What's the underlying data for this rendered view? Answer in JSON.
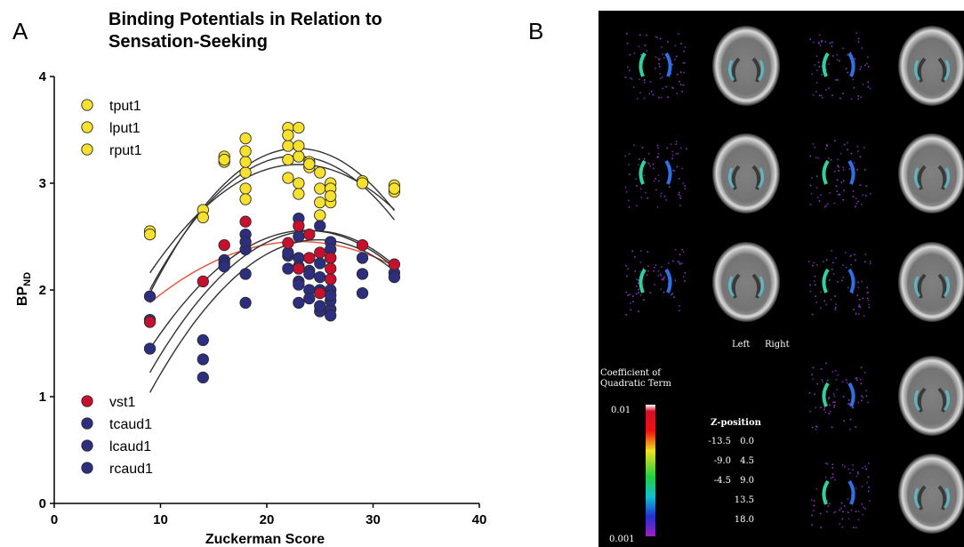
{
  "panels": {
    "a_label": "A",
    "b_label": "B"
  },
  "chart_data": {
    "type": "scatter",
    "title_line1": "Binding Potentials in Relation to",
    "title_line2": "Sensation-Seeking",
    "xlabel": "Zuckerman Score",
    "ylabel_main": "BP",
    "ylabel_sub": "ND",
    "xlim": [
      0,
      40
    ],
    "ylim": [
      0,
      4
    ],
    "xticks": [
      "0",
      "10",
      "20",
      "30",
      "40"
    ],
    "yticks": [
      "0",
      "1",
      "2",
      "3",
      "4"
    ],
    "colors": {
      "yellow": "#f6e12e",
      "red": "#c8102e",
      "navy": "#2e2e80",
      "curve_red": "#e0503c",
      "curve_gray": "#333333"
    },
    "series": [
      {
        "name": "tput1",
        "color": "yellow",
        "points": [
          [
            9,
            2.55
          ],
          [
            14,
            2.75
          ],
          [
            16,
            3.25
          ],
          [
            18,
            3.42
          ],
          [
            18,
            3.1
          ],
          [
            22,
            3.52
          ],
          [
            22,
            3.35
          ],
          [
            23,
            3.25
          ],
          [
            24,
            3.2
          ],
          [
            25,
            3.1
          ],
          [
            26,
            3.0
          ],
          [
            29,
            3.02
          ],
          [
            32,
            2.98
          ]
        ]
      },
      {
        "name": "lput1",
        "color": "yellow",
        "points": [
          [
            9,
            2.52
          ],
          [
            14,
            2.68
          ],
          [
            16,
            3.2
          ],
          [
            18,
            3.2
          ],
          [
            18,
            2.95
          ],
          [
            22,
            3.22
          ],
          [
            22,
            3.05
          ],
          [
            23,
            3.52
          ],
          [
            23,
            3.35
          ],
          [
            24,
            3.15
          ],
          [
            25,
            2.95
          ],
          [
            26,
            2.82
          ],
          [
            29,
            3.0
          ],
          [
            32,
            2.92
          ]
        ]
      },
      {
        "name": "rput1",
        "color": "yellow",
        "points": [
          [
            16,
            3.22
          ],
          [
            18,
            3.3
          ],
          [
            18,
            2.85
          ],
          [
            22,
            3.45
          ],
          [
            23,
            3.0
          ],
          [
            23,
            2.9
          ],
          [
            24,
            3.18
          ],
          [
            25,
            2.82
          ],
          [
            25,
            2.7
          ],
          [
            26,
            2.95
          ],
          [
            26,
            2.88
          ],
          [
            32,
            2.95
          ]
        ]
      },
      {
        "name": "vst1",
        "color": "red",
        "points": [
          [
            9,
            1.7
          ],
          [
            14,
            2.08
          ],
          [
            16,
            2.42
          ],
          [
            18,
            2.64
          ],
          [
            22,
            2.44
          ],
          [
            23,
            2.2
          ],
          [
            23,
            2.6
          ],
          [
            24,
            2.52
          ],
          [
            24,
            2.3
          ],
          [
            25,
            1.97
          ],
          [
            25,
            2.35
          ],
          [
            26,
            2.3
          ],
          [
            26,
            2.2
          ],
          [
            26,
            2.1
          ],
          [
            29,
            2.42
          ],
          [
            32,
            2.24
          ]
        ]
      },
      {
        "name": "tcaud1",
        "color": "navy",
        "points": [
          [
            9,
            1.94
          ],
          [
            9,
            1.45
          ],
          [
            14,
            1.53
          ],
          [
            14,
            1.35
          ],
          [
            14,
            1.18
          ],
          [
            16,
            2.28
          ],
          [
            18,
            2.52
          ],
          [
            18,
            2.38
          ],
          [
            18,
            2.15
          ],
          [
            22,
            2.32
          ],
          [
            23,
            2.67
          ],
          [
            23,
            2.3
          ],
          [
            23,
            2.08
          ],
          [
            24,
            2.18
          ],
          [
            24,
            2.0
          ],
          [
            25,
            2.6
          ],
          [
            25,
            2.25
          ],
          [
            26,
            2.45
          ],
          [
            26,
            2.3
          ],
          [
            26,
            1.82
          ],
          [
            29,
            2.3
          ],
          [
            32,
            2.16
          ]
        ]
      },
      {
        "name": "lcaud1",
        "color": "navy",
        "points": [
          [
            9,
            1.72
          ],
          [
            16,
            2.25
          ],
          [
            18,
            1.88
          ],
          [
            22,
            2.2
          ],
          [
            23,
            2.5
          ],
          [
            23,
            2.22
          ],
          [
            23,
            1.88
          ],
          [
            24,
            2.15
          ],
          [
            24,
            1.92
          ],
          [
            25,
            2.12
          ],
          [
            25,
            1.8
          ],
          [
            26,
            2.0
          ],
          [
            26,
            1.9
          ],
          [
            26,
            1.76
          ],
          [
            29,
            2.15
          ]
        ]
      },
      {
        "name": "rcaud1",
        "color": "navy",
        "points": [
          [
            16,
            2.22
          ],
          [
            18,
            2.45
          ],
          [
            22,
            2.35
          ],
          [
            23,
            2.05
          ],
          [
            24,
            2.3
          ],
          [
            25,
            1.85
          ],
          [
            25,
            2.0
          ],
          [
            26,
            2.38
          ],
          [
            26,
            2.1
          ],
          [
            26,
            1.95
          ],
          [
            29,
            1.97
          ],
          [
            32,
            2.12
          ]
        ]
      }
    ],
    "legend_top": [
      "tput1",
      "lput1",
      "rput1"
    ],
    "legend_bottom": [
      "vst1",
      "tcaud1",
      "lcaud1",
      "rcaud1"
    ],
    "fit_curves": [
      {
        "color": "curve_gray",
        "coef": [
          -0.355,
          0.3215,
          -0.00702
        ]
      },
      {
        "color": "curve_gray",
        "coef": [
          -0.2,
          0.3056,
          -0.00676
        ]
      },
      {
        "color": "curve_gray",
        "coef": [
          0.43,
          0.239,
          -0.0052
        ]
      },
      {
        "color": "curve_red",
        "coef": [
          0.91,
          0.1338,
          -0.0029
        ]
      },
      {
        "color": "curve_gray",
        "coef": [
          -0.32,
          0.2423,
          -0.0051
        ]
      },
      {
        "color": "curve_gray",
        "coef": [
          -0.78,
          0.2733,
          -0.0056
        ]
      },
      {
        "color": "curve_gray",
        "coef": [
          -1.05,
          0.2833,
          -0.0057
        ]
      }
    ]
  },
  "brain_panel": {
    "left_label": "Left",
    "right_label": "Right",
    "colorbar_title_line1": "Coefficient of",
    "colorbar_title_line2": "Quadratic Term",
    "colorbar_max": "0.01",
    "colorbar_min": "0.001",
    "z_title": "Z-position",
    "z_values": [
      [
        "-13.5",
        "0.0"
      ],
      [
        "-9.0",
        "4.5"
      ],
      [
        "-4.5",
        "9.0"
      ],
      [
        "",
        "13.5"
      ],
      [
        "",
        "18.0"
      ]
    ]
  }
}
